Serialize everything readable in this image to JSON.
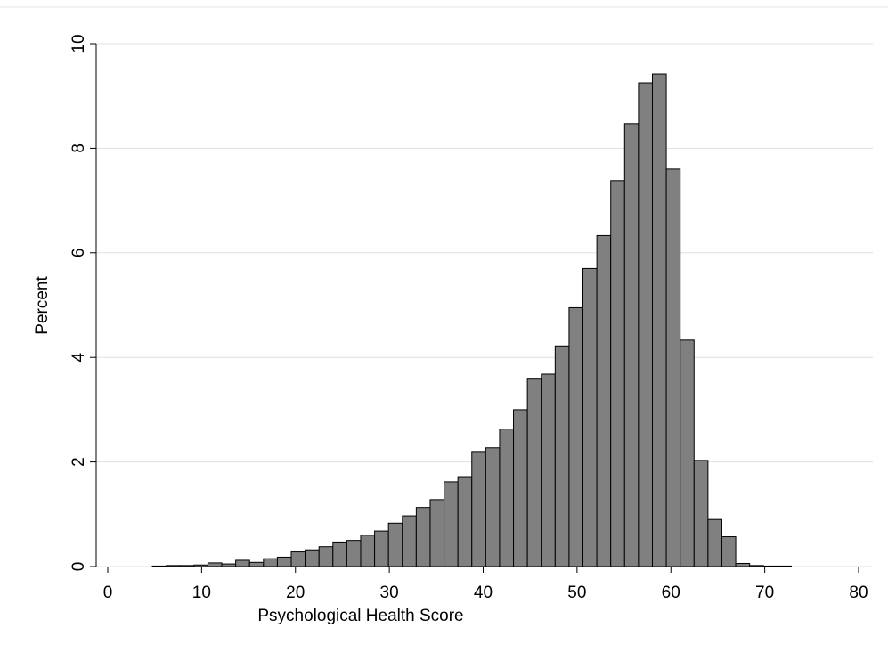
{
  "chart_data": {
    "type": "histogram",
    "xlabel": "Psychological Health Score",
    "ylabel": "Percent",
    "bins": [
      4.75,
      6.23,
      7.71,
      9.19,
      10.67,
      12.15,
      13.63,
      15.11,
      16.59,
      18.07,
      19.55,
      21.03,
      22.51,
      23.99,
      25.47,
      26.95,
      28.43,
      29.91,
      31.39,
      32.87,
      34.35,
      35.83,
      37.31,
      38.79,
      40.27,
      41.75,
      43.23,
      44.71,
      46.19,
      47.67,
      49.15,
      50.63,
      52.11,
      53.59,
      55.07,
      56.55,
      58.03,
      59.51,
      60.99,
      62.47,
      63.95,
      65.43,
      66.91,
      68.39,
      69.87,
      71.35,
      72.83
    ],
    "values": [
      0.01,
      0.02,
      0.02,
      0.03,
      0.07,
      0.05,
      0.12,
      0.08,
      0.15,
      0.18,
      0.28,
      0.32,
      0.38,
      0.47,
      0.5,
      0.6,
      0.68,
      0.83,
      0.97,
      1.13,
      1.28,
      1.62,
      1.72,
      2.2,
      2.27,
      2.63,
      3.0,
      3.6,
      3.68,
      4.22,
      4.95,
      5.7,
      6.33,
      7.38,
      8.47,
      9.25,
      9.42,
      7.6,
      4.33,
      2.03,
      0.9,
      0.57,
      0.06,
      0.02,
      0.01,
      0.01
    ],
    "color": "#808080",
    "xlim": [
      0,
      80
    ],
    "xticks": [
      0,
      10,
      20,
      30,
      40,
      50,
      60,
      70,
      80
    ],
    "ylim": [
      0,
      10
    ],
    "yticks": [
      0,
      2,
      4,
      6,
      8,
      10
    ],
    "grid": true
  }
}
